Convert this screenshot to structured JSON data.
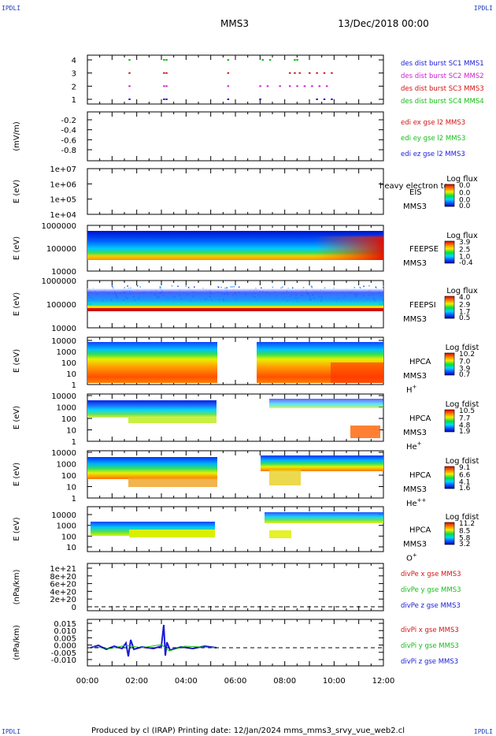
{
  "header": {
    "corner_label": "IPDLI",
    "spacecraft": "MMS3",
    "date": "13/Dec/2018 00:00"
  },
  "footer": "Produced by cl (IRAP)   Printing date: 12/Jan/2024   mms_mms3_srvy_vue_web2.cl",
  "x_axis": {
    "ticks": [
      "00:00",
      "02:00",
      "04:00",
      "06:00",
      "08:00",
      "10:00",
      "12:00"
    ],
    "range_hours": [
      0,
      12
    ]
  },
  "chart_data": [
    {
      "id": "burst",
      "type": "scatter",
      "yticks": [
        "4",
        "3",
        "2",
        "1"
      ],
      "legend": [
        {
          "text": "des dist burst SC1 MMS1",
          "color": "#1a1adc"
        },
        {
          "text": "des dist burst SC2 MMS2",
          "color": "#d21ed2"
        },
        {
          "text": "des dist burst SC3 MMS3",
          "color": "#d21414"
        },
        {
          "text": "des dist burst SC4 MMS4",
          "color": "#14be14"
        }
      ],
      "series": [
        {
          "level": 4,
          "color": "#14be14",
          "x": [
            1.7,
            3.1,
            3.2,
            5.7,
            7.1,
            7.4,
            8.4,
            8.5
          ]
        },
        {
          "level": 3,
          "color": "#d21414",
          "x": [
            1.7,
            3.1,
            3.2,
            5.7,
            8.2,
            8.4,
            8.6,
            9.0,
            9.3,
            9.6,
            9.9
          ]
        },
        {
          "level": 2,
          "color": "#d21ed2",
          "x": [
            1.7,
            3.1,
            3.2,
            5.7,
            7.0,
            7.3,
            7.8,
            8.2,
            8.5,
            8.8,
            9.1,
            9.4,
            9.7
          ]
        },
        {
          "level": 1,
          "color": "#1a1adc",
          "x": [
            1.7,
            3.1,
            3.2,
            5.7,
            7.0,
            9.3,
            9.6,
            9.9
          ]
        }
      ]
    },
    {
      "id": "edi",
      "type": "line",
      "ylabel": "(mV/m)",
      "yticks": [
        "-0.2",
        "-0.4",
        "-0.6",
        "-0.8"
      ],
      "legend": [
        {
          "text": "edi ex gse l2 MMS3",
          "color": "#d21414"
        },
        {
          "text": "edi ey gse l2 MMS3",
          "color": "#14be14"
        },
        {
          "text": "edi ez gse l2 MMS3",
          "color": "#1a1adc"
        }
      ]
    },
    {
      "id": "eis",
      "type": "heatmap",
      "ylabel": "E (eV)",
      "yticks": [
        "1e+07",
        "1e+06",
        "1e+05",
        "1e+04"
      ],
      "instrument": "EIS",
      "spacecraft": "MMS3",
      "overlay_text": "heavy electron to",
      "colorbar_title": "Log flux",
      "colorbar_ticks": [
        "0.0",
        "0.0",
        "0.0",
        "0.0"
      ]
    },
    {
      "id": "feepse",
      "type": "heatmap",
      "ylabel": "E (eV)",
      "yticks": [
        "1000000",
        "100000",
        "10000"
      ],
      "instrument": "FEEPSE",
      "spacecraft": "MMS3",
      "colorbar_title": "Log flux",
      "colorbar_ticks": [
        "3.9",
        "2.5",
        "1.0",
        "-0.4"
      ]
    },
    {
      "id": "feepsi",
      "type": "heatmap",
      "ylabel": "E (eV)",
      "yticks": [
        "1000000",
        "100000",
        "10000"
      ],
      "instrument": "FEEPSI",
      "spacecraft": "MMS3",
      "colorbar_title": "Log flux",
      "colorbar_ticks": [
        "4.0",
        "2.9",
        "1.7",
        "0.5"
      ]
    },
    {
      "id": "hpca_h",
      "type": "heatmap",
      "ylabel": "E (eV)",
      "yticks": [
        "10000",
        "1000",
        "100",
        "10",
        "1"
      ],
      "instrument": "HPCA",
      "spacecraft": "MMS3",
      "species": "H",
      "charge": "+",
      "colorbar_title": "Log fdist",
      "colorbar_ticks": [
        "10.2",
        "7.0",
        "3.9",
        "0.7"
      ]
    },
    {
      "id": "hpca_he",
      "type": "heatmap",
      "ylabel": "E (eV)",
      "yticks": [
        "10000",
        "1000",
        "100",
        "10",
        "1"
      ],
      "instrument": "HPCA",
      "spacecraft": "MMS3",
      "species": "He",
      "charge": "+",
      "colorbar_title": "Log fdist",
      "colorbar_ticks": [
        "10.5",
        "7.7",
        "4.8",
        "1.9"
      ]
    },
    {
      "id": "hpca_hepp",
      "type": "heatmap",
      "ylabel": "E (eV)",
      "yticks": [
        "10000",
        "1000",
        "100",
        "10",
        "1"
      ],
      "instrument": "HPCA",
      "spacecraft": "MMS3",
      "species": "He",
      "charge": "++",
      "colorbar_title": "Log fdist",
      "colorbar_ticks": [
        "9.1",
        "6.6",
        "4.1",
        "1.6"
      ]
    },
    {
      "id": "hpca_o",
      "type": "heatmap",
      "ylabel": "E (eV)",
      "yticks": [
        "10000",
        "1000",
        "100",
        "10"
      ],
      "instrument": "HPCA",
      "spacecraft": "MMS3",
      "species": "O",
      "charge": "+",
      "colorbar_title": "Log fdist",
      "colorbar_ticks": [
        "11.2",
        "8.5",
        "5.8",
        "3.2"
      ]
    },
    {
      "id": "divpe",
      "type": "line",
      "ylabel": "(nPa/km)",
      "yticks": [
        "1e+21",
        "8e+20",
        "6e+20",
        "4e+20",
        "2e+20",
        "0"
      ],
      "legend": [
        {
          "text": "divPe x gse MMS3",
          "color": "#d21414"
        },
        {
          "text": "divPe y gse MMS3",
          "color": "#14be14"
        },
        {
          "text": "divPe z gse MMS3",
          "color": "#1a1adc"
        }
      ]
    },
    {
      "id": "divpi",
      "type": "line",
      "ylabel": "(nPa/km)",
      "yticks": [
        "0.015",
        "0.010",
        "0.005",
        "0.000",
        "-0.005",
        "-0.010"
      ],
      "ylim": [
        -0.012,
        0.016
      ],
      "legend": [
        {
          "text": "divPi x gse MMS3",
          "color": "#d21414"
        },
        {
          "text": "divPi y gse MMS3",
          "color": "#14be14"
        },
        {
          "text": "divPi z gse MMS3",
          "color": "#1a1adc"
        }
      ]
    }
  ]
}
